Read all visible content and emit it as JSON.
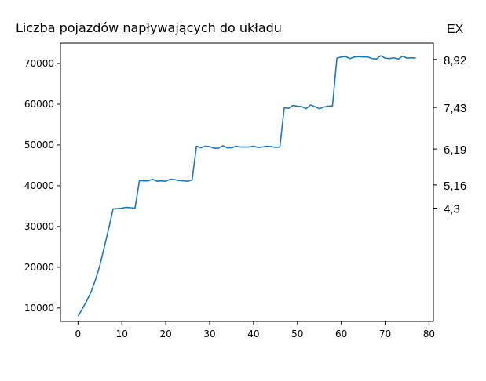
{
  "chart_data": {
    "type": "line",
    "title": "Liczba pojazdów napływających do układu",
    "xlabel": "",
    "ylabel": "",
    "xlim": [
      -4,
      81
    ],
    "ylim": [
      6700,
      75000
    ],
    "x_ticks": [
      0,
      10,
      20,
      30,
      40,
      50,
      60,
      70,
      80
    ],
    "y_ticks": [
      10000,
      20000,
      30000,
      40000,
      50000,
      60000,
      70000
    ],
    "grid": false,
    "series": [
      {
        "color": "#1f77b4",
        "x": [
          0,
          1,
          2,
          3,
          4,
          5,
          6,
          7,
          8,
          9,
          10,
          11,
          12,
          13,
          14,
          15,
          16,
          17,
          18,
          19,
          20,
          21,
          22,
          23,
          24,
          25,
          26,
          27,
          28,
          29,
          30,
          31,
          32,
          33,
          34,
          35,
          36,
          37,
          38,
          39,
          40,
          41,
          42,
          43,
          44,
          45,
          46,
          47,
          48,
          49,
          50,
          51,
          52,
          53,
          54,
          55,
          56,
          57,
          58,
          59,
          60,
          61,
          62,
          63,
          64,
          65,
          66,
          67,
          68,
          69,
          70,
          71,
          72,
          73,
          74,
          75,
          76,
          77
        ],
        "y": [
          8000,
          9800,
          11800,
          14000,
          17000,
          20500,
          25000,
          29500,
          34300,
          34400,
          34500,
          34700,
          34600,
          34500,
          41300,
          41200,
          41200,
          41600,
          41100,
          41200,
          41100,
          41600,
          41500,
          41300,
          41200,
          41100,
          41400,
          49700,
          49300,
          49700,
          49600,
          49200,
          49200,
          49800,
          49300,
          49300,
          49700,
          49500,
          49500,
          49500,
          49700,
          49400,
          49500,
          49700,
          49600,
          49400,
          49500,
          59100,
          59000,
          59700,
          59500,
          59400,
          58900,
          59800,
          59400,
          58900,
          59300,
          59500,
          59600,
          71300,
          71600,
          71700,
          71200,
          71600,
          71700,
          71600,
          71600,
          71200,
          71100,
          71900,
          71300,
          71200,
          71400,
          71100,
          71800,
          71300,
          71400,
          71300
        ]
      }
    ],
    "right_axis": {
      "label": "EX",
      "ticks": [
        {
          "label": "8,92",
          "at": 71000
        },
        {
          "label": "7,43",
          "at": 59200
        },
        {
          "label": "6,19",
          "at": 49000
        },
        {
          "label": "5,16",
          "at": 40200
        },
        {
          "label": "4,3",
          "at": 34500
        }
      ]
    }
  }
}
